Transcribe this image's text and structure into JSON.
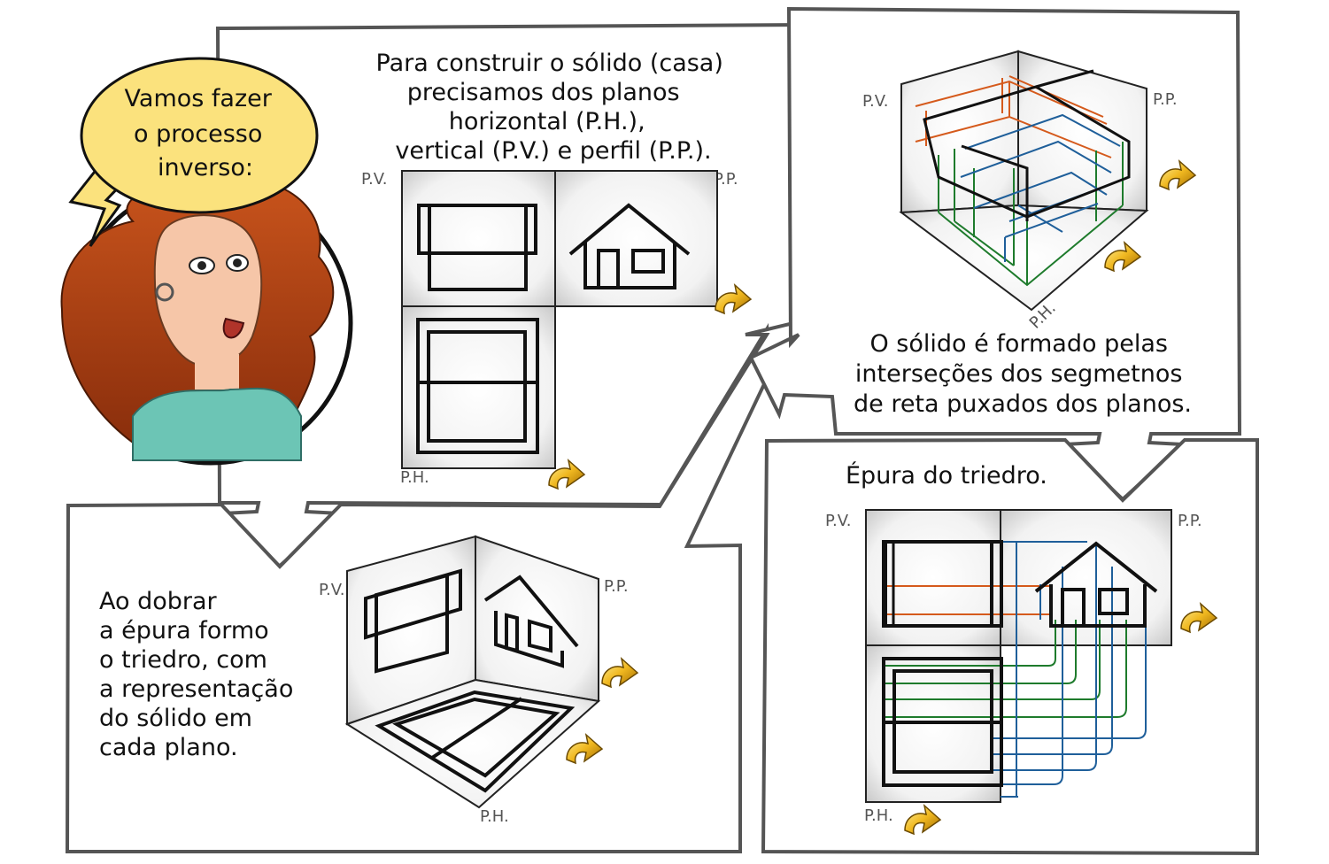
{
  "speech_bubble": {
    "lines": [
      "Vamos fazer",
      "o processo",
      "inverso:"
    ]
  },
  "panel_top": {
    "caption": [
      "Para construir o sólido (casa)",
      "precisamos dos planos",
      "horizontal (P.H.),",
      "vertical (P.V.) e perfil (P.P.)."
    ],
    "label_pv": "P.V.",
    "label_pp": "P.P.",
    "label_ph": "P.H."
  },
  "panel_bottom_left": {
    "caption": [
      "Ao dobrar",
      "a épura formo",
      "o triedro, com",
      "a representação",
      "do sólido em",
      "cada plano."
    ],
    "label_pv": "P.V.",
    "label_pp": "P.P.",
    "label_ph": "P.H."
  },
  "panel_top_right": {
    "caption": [
      "O sólido é formado pelas",
      "interseções dos segmetnos",
      "de reta puxados dos planos."
    ],
    "label_pv": "P.V.",
    "label_pp": "P.P.",
    "label_ph": "P.H."
  },
  "panel_bottom_right": {
    "caption": "Épura do triedro.",
    "label_pv": "P.V.",
    "label_pp": "P.P.",
    "label_ph": "P.H."
  },
  "colors": {
    "orange_lines": "#d55a1c",
    "green_lines": "#1e7b2c",
    "blue_lines": "#1f5f9a",
    "bubble": "#fbe27d",
    "fold_arrow": "#f0b820"
  },
  "icons": [
    "fold-arrow-icon",
    "flow-arrow-icon",
    "speech-bubble-icon",
    "woman-avatar-icon"
  ]
}
